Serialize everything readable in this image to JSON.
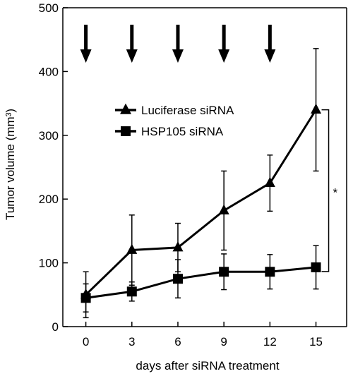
{
  "chart_data": {
    "type": "line",
    "xlabel": "days after siRNA treatment",
    "ylabel": "Tumor volume (mm³)",
    "xlim": [
      -1.5,
      17
    ],
    "ylim": [
      0,
      500
    ],
    "x_ticks": [
      0,
      3,
      6,
      9,
      12,
      15
    ],
    "y_ticks": [
      0,
      100,
      200,
      300,
      400,
      500
    ],
    "grid": false,
    "legend_position": "center",
    "series": [
      {
        "name": "Luciferase siRNA",
        "marker": "triangle",
        "color": "#000000",
        "x": [
          0,
          3,
          6,
          9,
          12,
          15
        ],
        "y": [
          50,
          120,
          124,
          182,
          225,
          340
        ],
        "err": [
          36,
          55,
          38,
          62,
          44,
          96
        ]
      },
      {
        "name": "HSP105 siRNA",
        "marker": "square",
        "color": "#000000",
        "x": [
          0,
          3,
          6,
          9,
          12,
          15
        ],
        "y": [
          45,
          55,
          75,
          86,
          86,
          93
        ],
        "err": [
          22,
          15,
          30,
          28,
          27,
          34
        ]
      }
    ],
    "treatment_arrows_x": [
      0,
      3,
      6,
      9,
      12
    ],
    "significance": {
      "label": "*",
      "between_x": 15
    }
  }
}
